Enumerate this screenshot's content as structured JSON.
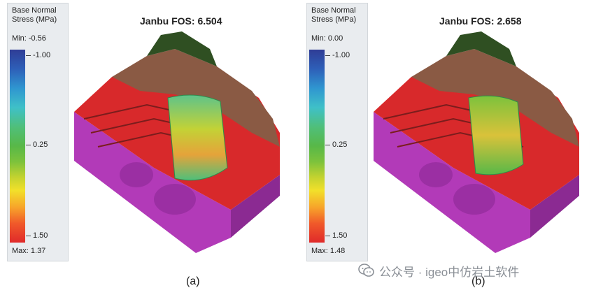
{
  "panels": [
    {
      "legend": {
        "title_line1": "Base Normal",
        "title_line2": "Stress (MPa)",
        "min_text": "Min: -0.56",
        "max_text": "Max: 1.37",
        "tick_top": "-1.00",
        "tick_mid": "0.25",
        "tick_bot": "1.50"
      },
      "title": "Janbu FOS: 6.504",
      "caption": "(a)"
    },
    {
      "legend": {
        "title_line1": "Base Normal",
        "title_line2": "Stress (MPa)",
        "min_text": "Min: 0.00",
        "max_text": "Max: 1.48",
        "tick_top": "-1.00",
        "tick_mid": "0.25",
        "tick_bot": "1.50"
      },
      "title": "Janbu FOS: 2.658",
      "caption": "(b)"
    }
  ],
  "watermark": {
    "text": "公众号 · igeo中仿岩土软件",
    "icon": "wechat-icon"
  },
  "colors": {
    "slope_red": "#d8292b",
    "terrain_brown": "#8a5a44",
    "base_purple": "#b23ab8",
    "vegetation_green": "#2f4f22"
  }
}
